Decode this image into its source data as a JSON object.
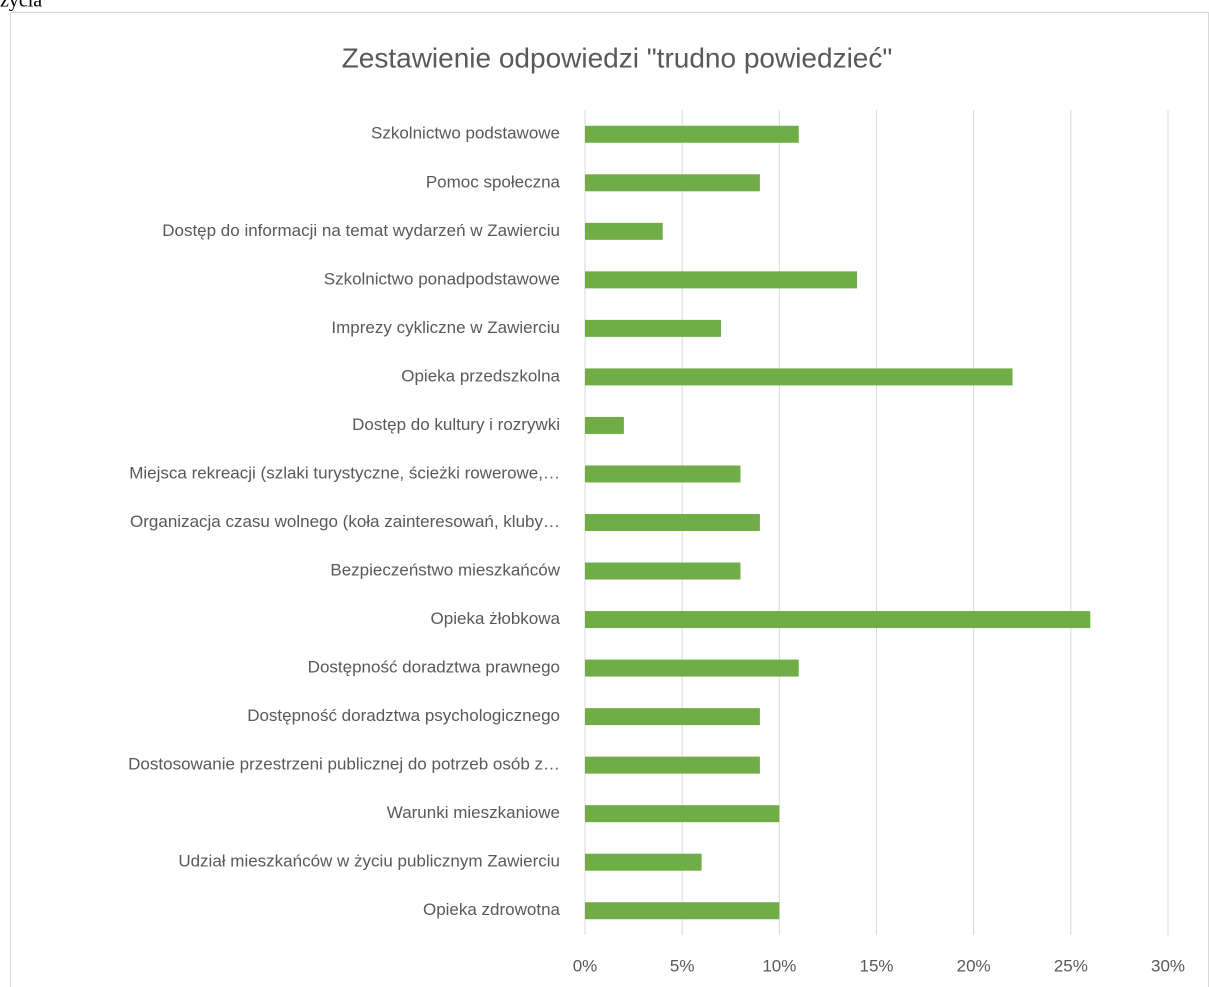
{
  "caption": "życia",
  "chart_data": {
    "type": "barh",
    "title": "Zestawienie odpowiedzi \"trudno powiedzieć\"",
    "categories": [
      "Szkolnictwo podstawowe",
      "Pomoc społeczna",
      "Dostęp do informacji na temat wydarzeń w Zawierciu",
      "Szkolnictwo ponadpodstawowe",
      "Imprezy cykliczne w Zawierciu",
      "Opieka przedszkolna",
      "Dostęp do kultury i rozrywki",
      "Miejsca rekreacji (szlaki turystyczne, ścieżki rowerowe,…",
      "Organizacja czasu wolnego (koła zainteresowań, kluby…",
      "Bezpieczeństwo mieszkańców",
      "Opieka żłobkowa",
      "Dostępność doradztwa prawnego",
      "Dostępność doradztwa psychologicznego",
      "Dostosowanie przestrzeni publicznej do potrzeb osób z…",
      "Warunki mieszkaniowe",
      "Udział mieszkańców w życiu publicznym Zawierciu",
      "Opieka zdrowotna"
    ],
    "values": [
      11,
      9,
      4,
      14,
      7,
      22,
      2,
      8,
      9,
      8,
      26,
      11,
      9,
      9,
      10,
      6,
      10
    ],
    "color": "#70ad47",
    "xlim": [
      0,
      30
    ],
    "xticks": [
      {
        "value": 0,
        "label": "0%"
      },
      {
        "value": 5,
        "label": "5%"
      },
      {
        "value": 10,
        "label": "10%"
      },
      {
        "value": 15,
        "label": "15%"
      },
      {
        "value": 20,
        "label": "20%"
      },
      {
        "value": 25,
        "label": "25%"
      },
      {
        "value": 30,
        "label": "30%"
      }
    ],
    "grid": true
  }
}
